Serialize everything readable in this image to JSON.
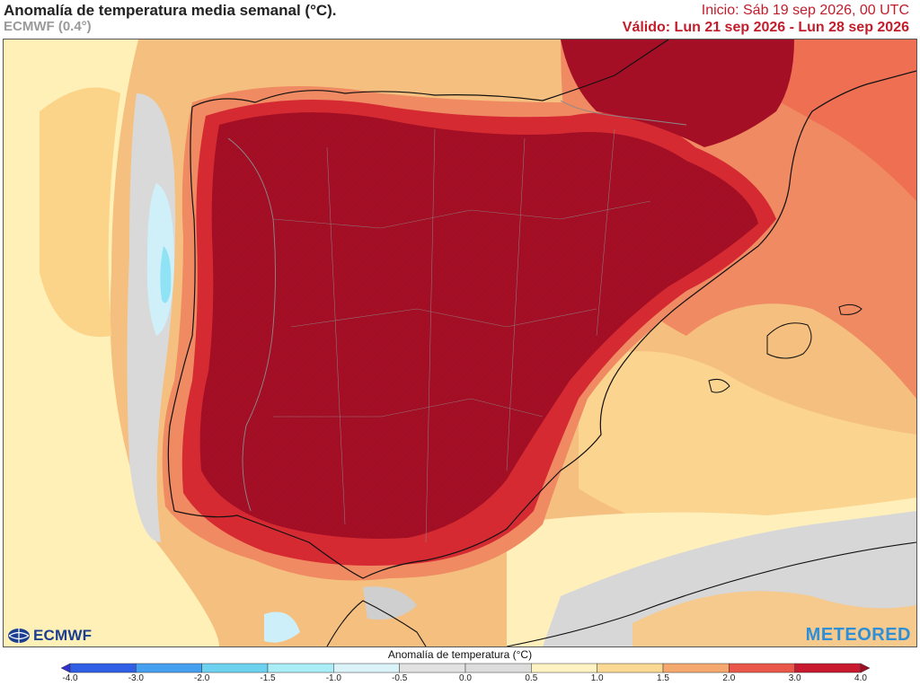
{
  "header": {
    "title": "Anomalía de temperatura media semanal (°C).",
    "model": "ECMWF (0.4°)",
    "init": "Inicio: Sáb 19 sep 2026, 00 UTC",
    "valid": "Válido: Lun 21 sep 2026 - Lun 28 sep 2026"
  },
  "map": {
    "variable": "Anomalía de temperatura media semanal",
    "unit": "°C",
    "region_level": "land-max",
    "colors": {
      "c_lt_m4": "#3b3bd6",
      "c_m4_m3": "#2f56e6",
      "c_m3_m2": "#3f8df0",
      "c_m2_m15": "#5cbfee",
      "c_m15_m1": "#8fe3f4",
      "c_m1_m05": "#cdeffa",
      "c_m05_0": "#dddddd",
      "c_0_05": "#d8d8d8",
      "c_05_1": "#fff2bd",
      "c_1_15": "#fbd88f",
      "c_15_2": "#f6b273",
      "c_2_3": "#ef7355",
      "c_3_4": "#d62a33",
      "c_gt_4": "#a50f25"
    }
  },
  "logos": {
    "ecmwf": "ECMWF",
    "meteored": "METEORED"
  },
  "legend": {
    "title": "Anomalía de temperatura (°C)",
    "ticks": [
      "-4.0",
      "-3.0",
      "-2.0",
      "-1.5",
      "-1.0",
      "-0.5",
      "0.0",
      "0.5",
      "1.0",
      "1.5",
      "2.0",
      "3.0",
      "4.0"
    ],
    "colors": [
      "#3431cc",
      "#2f5fe6",
      "#45a0ef",
      "#6cd2f0",
      "#a9eef6",
      "#d9f3f8",
      "#e2e2e2",
      "#dcdcdc",
      "#fff3c2",
      "#fbd993",
      "#f5a86e",
      "#e9574a",
      "#c8192e",
      "#a00e24"
    ]
  }
}
